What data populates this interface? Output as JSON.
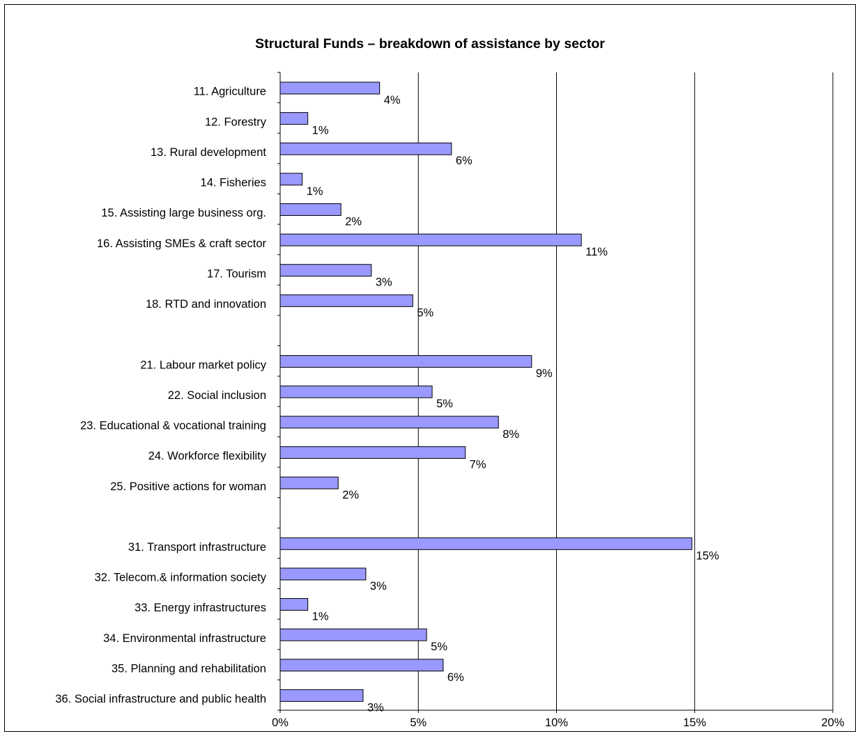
{
  "chart_data": {
    "type": "bar",
    "orientation": "horizontal",
    "title": "Structural Funds – breakdown of assistance by sector",
    "xlabel": "",
    "ylabel": "",
    "xlim": [
      0,
      20
    ],
    "x_ticks": [
      "0%",
      "5%",
      "10%",
      "15%",
      "20%"
    ],
    "grid": "vertical major gridlines",
    "legend": "none",
    "bar_color": "#9999ff",
    "categories": [
      "11. Agriculture",
      "12. Forestry",
      "13. Rural development",
      "14. Fisheries",
      "15. Assisting large business org.",
      "16. Assisting SMEs & craft sector",
      "17. Tourism",
      "18. RTD and innovation",
      "",
      "21. Labour market policy",
      "22. Social inclusion",
      "23. Educational & vocational training",
      "24. Workforce flexibility",
      "25. Positive actions for woman",
      "",
      "31. Transport infrastructure",
      "32. Telecom.& information society",
      "33. Energy infrastructures",
      "34. Environmental infrastructure",
      "35. Planning and rehabilitation",
      "36. Social infrastructure and public health"
    ],
    "values": [
      3.6,
      1.0,
      6.2,
      0.8,
      2.2,
      10.9,
      3.3,
      4.8,
      null,
      9.1,
      5.5,
      7.9,
      6.7,
      2.1,
      null,
      14.9,
      3.1,
      1.0,
      5.3,
      5.9,
      3.0
    ],
    "data_labels": [
      "4%",
      "1%",
      "6%",
      "1%",
      "2%",
      "11%",
      "3%",
      "5%",
      "",
      "9%",
      "5%",
      "8%",
      "7%",
      "2%",
      "",
      "15%",
      "3%",
      "1%",
      "5%",
      "6%",
      "3%"
    ]
  }
}
